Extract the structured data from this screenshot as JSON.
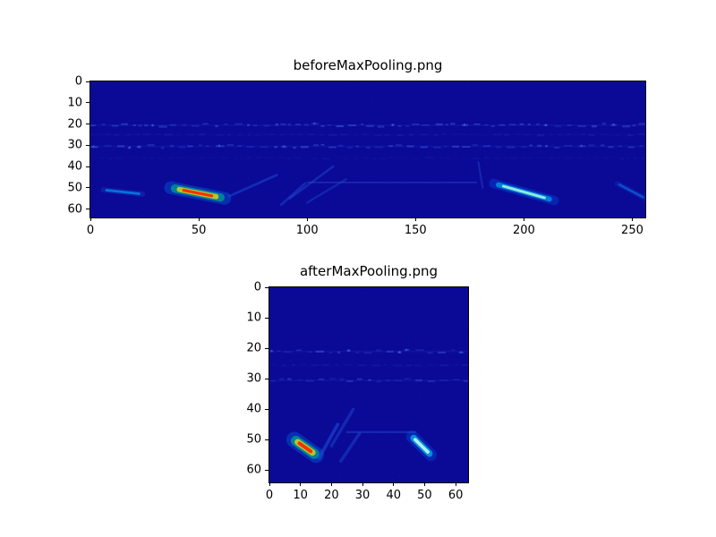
{
  "figure": {
    "background": "#ffffff"
  },
  "chart_data": [
    {
      "type": "heatmap",
      "title": "beforeMaxPooling.png",
      "xlabel": "",
      "ylabel": "",
      "x_range": [
        0,
        256
      ],
      "y_range": [
        0,
        64
      ],
      "x_ticks": [
        0,
        50,
        100,
        150,
        200,
        250
      ],
      "y_ticks": [
        0,
        10,
        20,
        30,
        40,
        50,
        60
      ],
      "y_inverted": true,
      "grid": false,
      "legend": "none",
      "colormap": "jet",
      "bg_color": "#0a0a96",
      "bands": [
        {
          "y": 20.5,
          "color": "#4a66e8",
          "alpha": 0.5,
          "wavy": true
        },
        {
          "y": 25.0,
          "color": "#2438b4",
          "alpha": 0.3,
          "wavy": false
        },
        {
          "y": 30.5,
          "color": "#4a66e8",
          "alpha": 0.45,
          "wavy": true
        },
        {
          "y": 36.0,
          "color": "#2438b4",
          "alpha": 0.18,
          "wavy": false
        }
      ],
      "streaks": [
        {
          "x": [
            6,
            24
          ],
          "y": [
            51,
            53
          ],
          "w": 1.4,
          "alpha": 0.6,
          "colors": [
            "#1e50e0",
            "#00b4ff"
          ]
        },
        {
          "x": [
            37,
            62
          ],
          "y": [
            50,
            55
          ],
          "w": 3.0,
          "alpha": 0.95,
          "colors": [
            "#0090ff",
            "#00e080",
            "#ffe000",
            "#ff2000"
          ]
        },
        {
          "x": [
            64,
            86
          ],
          "y": [
            54,
            44
          ],
          "w": 1.1,
          "alpha": 0.45,
          "colors": [
            "#2255dd"
          ]
        },
        {
          "x": [
            88,
            99
          ],
          "y": [
            58,
            48
          ],
          "w": 1.1,
          "alpha": 0.4,
          "colors": [
            "#2255dd"
          ]
        },
        {
          "x": [
            92,
            112
          ],
          "y": [
            55,
            40
          ],
          "w": 1.1,
          "alpha": 0.4,
          "colors": [
            "#2255dd"
          ]
        },
        {
          "x": [
            100,
            118
          ],
          "y": [
            57,
            46
          ],
          "w": 1.0,
          "alpha": 0.35,
          "colors": [
            "#2255dd"
          ]
        },
        {
          "x": [
            100,
            178
          ],
          "y": [
            47.5,
            47.5
          ],
          "w": 0.7,
          "alpha": 0.5,
          "colors": [
            "#2a4ad0"
          ]
        },
        {
          "x": [
            179,
            181
          ],
          "y": [
            38,
            50
          ],
          "w": 0.9,
          "alpha": 0.4,
          "colors": [
            "#2a4ad0"
          ]
        },
        {
          "x": [
            186,
            214
          ],
          "y": [
            48,
            56
          ],
          "w": 2.2,
          "alpha": 0.9,
          "colors": [
            "#0066ff",
            "#00ccff",
            "#aaffdd"
          ]
        },
        {
          "x": [
            243,
            256
          ],
          "y": [
            48,
            55
          ],
          "w": 1.3,
          "alpha": 0.5,
          "colors": [
            "#1e50e0",
            "#0090ff"
          ]
        }
      ]
    },
    {
      "type": "heatmap",
      "title": "afterMaxPooling.png",
      "xlabel": "",
      "ylabel": "",
      "x_range": [
        0,
        64
      ],
      "y_range": [
        0,
        64
      ],
      "x_ticks": [
        0,
        10,
        20,
        30,
        40,
        50,
        60
      ],
      "y_ticks": [
        0,
        10,
        20,
        30,
        40,
        50,
        60
      ],
      "y_inverted": true,
      "grid": false,
      "legend": "none",
      "colormap": "jet",
      "bg_color": "#0a0a96",
      "bands": [
        {
          "y": 21.0,
          "color": "#4a66e8",
          "alpha": 0.45,
          "wavy": true
        },
        {
          "y": 25.5,
          "color": "#2438b4",
          "alpha": 0.28,
          "wavy": false
        },
        {
          "y": 30.5,
          "color": "#4a66e8",
          "alpha": 0.42,
          "wavy": true
        }
      ],
      "streaks": [
        {
          "x": [
            8,
            15
          ],
          "y": [
            50,
            55
          ],
          "w": 2.6,
          "alpha": 0.95,
          "colors": [
            "#0090ff",
            "#00e080",
            "#ffe000",
            "#ff2000"
          ]
        },
        {
          "x": [
            16,
            22
          ],
          "y": [
            56,
            45
          ],
          "w": 1.1,
          "alpha": 0.5,
          "colors": [
            "#2255dd"
          ]
        },
        {
          "x": [
            20,
            27
          ],
          "y": [
            52,
            40
          ],
          "w": 1.0,
          "alpha": 0.4,
          "colors": [
            "#2255dd"
          ]
        },
        {
          "x": [
            23,
            29
          ],
          "y": [
            57,
            48
          ],
          "w": 1.0,
          "alpha": 0.4,
          "colors": [
            "#2255dd"
          ]
        },
        {
          "x": [
            25,
            47
          ],
          "y": [
            47.5,
            47.5
          ],
          "w": 0.7,
          "alpha": 0.45,
          "colors": [
            "#2a4ad0"
          ]
        },
        {
          "x": [
            46,
            52
          ],
          "y": [
            49,
            55
          ],
          "w": 2.0,
          "alpha": 0.9,
          "colors": [
            "#0066ff",
            "#00e5ff",
            "#ccffee"
          ]
        }
      ]
    }
  ]
}
